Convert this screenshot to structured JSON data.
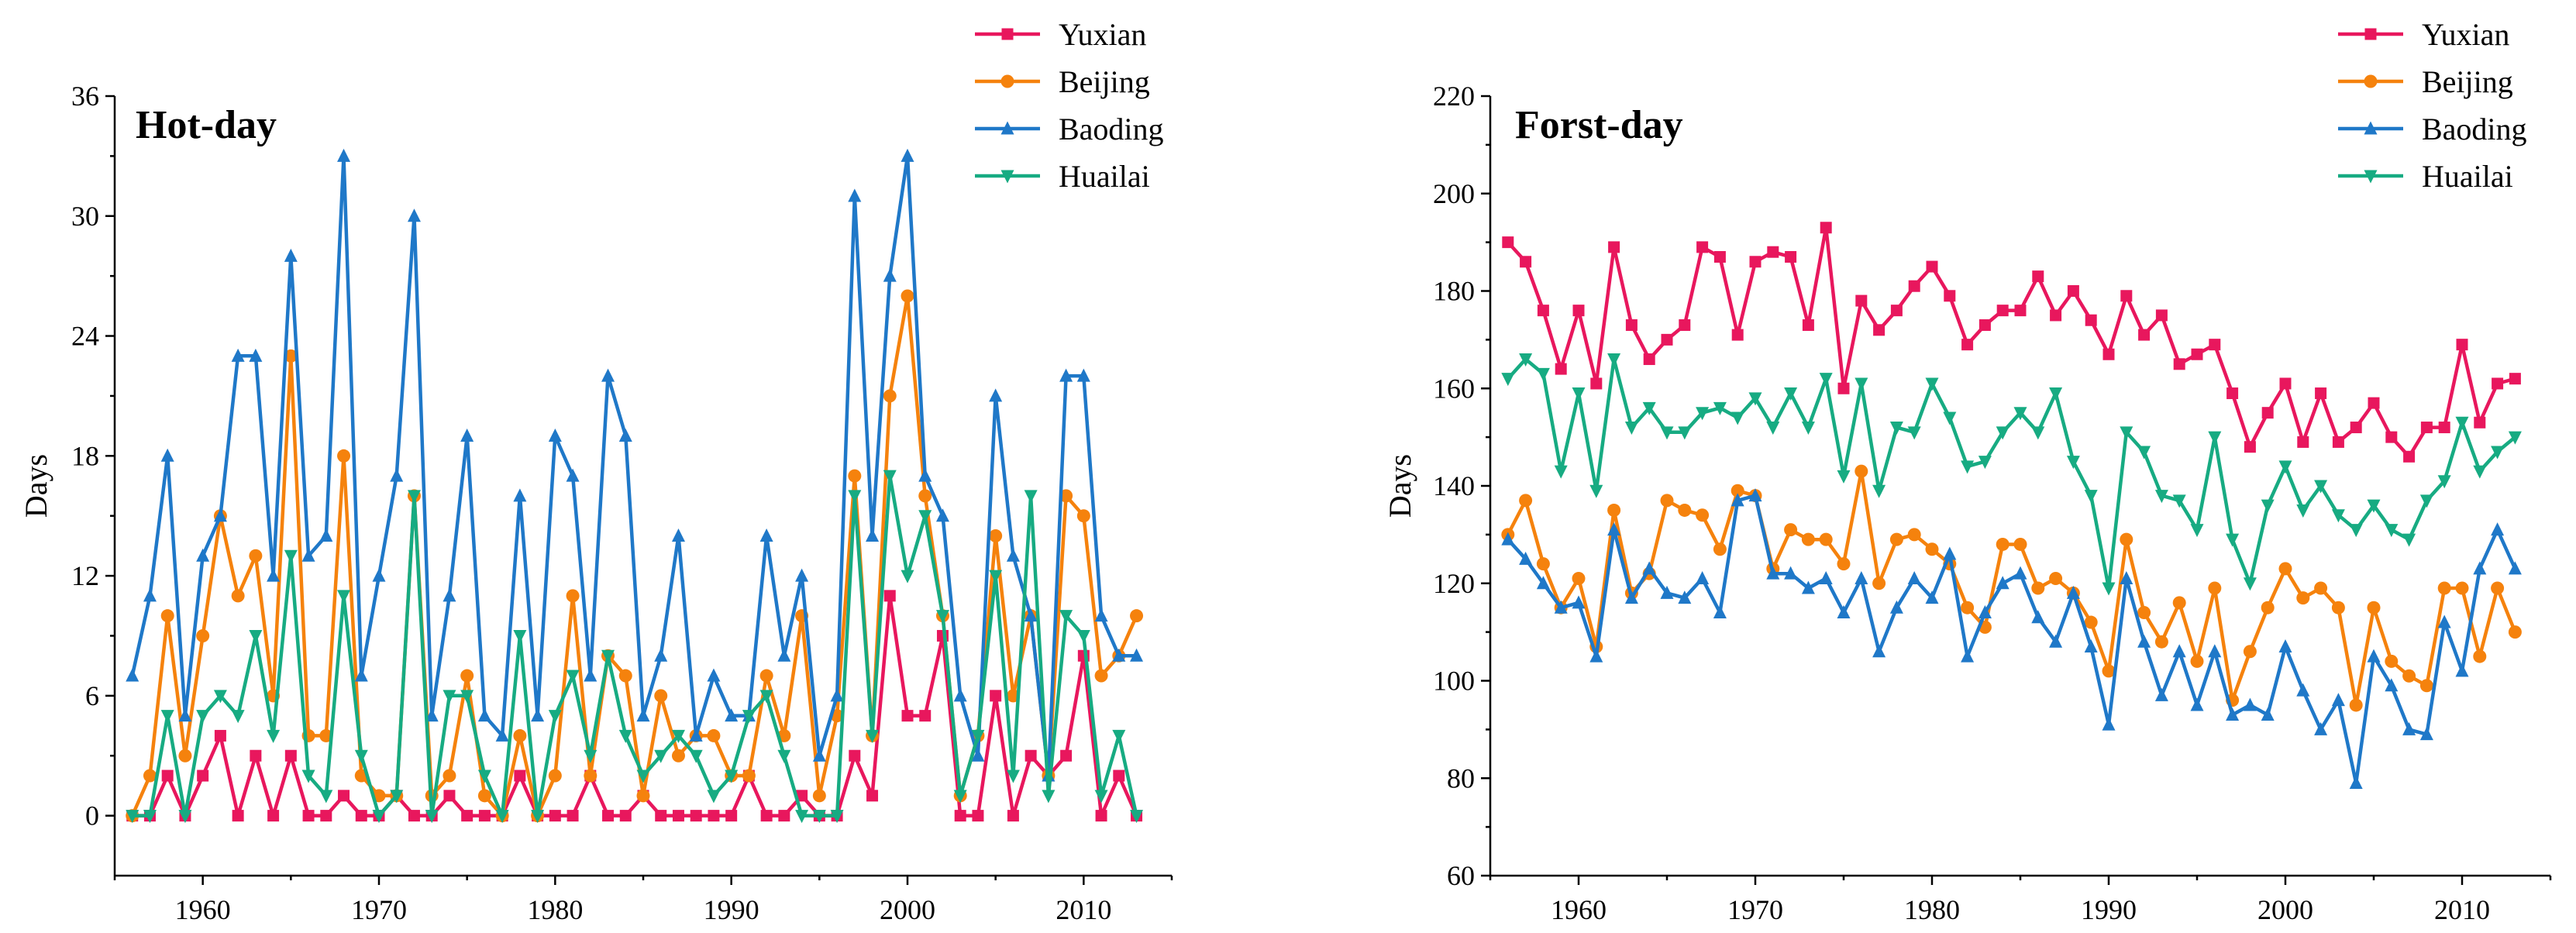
{
  "chart_data": [
    {
      "type": "line",
      "title": "Hot-day",
      "xlabel": "",
      "ylabel": "Days",
      "xlim": [
        1955,
        2015
      ],
      "ylim": [
        -3,
        36
      ],
      "xticks": [
        1960,
        1970,
        1980,
        1990,
        2000,
        2010
      ],
      "yticks": [
        0,
        6,
        12,
        18,
        24,
        30,
        36
      ],
      "legend_position": "top-right",
      "x": [
        1956,
        1957,
        1958,
        1959,
        1960,
        1961,
        1962,
        1963,
        1964,
        1965,
        1966,
        1967,
        1968,
        1969,
        1970,
        1971,
        1972,
        1973,
        1974,
        1975,
        1976,
        1977,
        1978,
        1979,
        1980,
        1981,
        1982,
        1983,
        1984,
        1985,
        1986,
        1987,
        1988,
        1989,
        1990,
        1991,
        1992,
        1993,
        1994,
        1995,
        1996,
        1997,
        1998,
        1999,
        2000,
        2001,
        2002,
        2003,
        2004,
        2005,
        2006,
        2007,
        2008,
        2009,
        2010,
        2011,
        2012,
        2013
      ],
      "series": [
        {
          "name": "Yuxian",
          "color": "#e8175d",
          "marker": "square",
          "values": [
            0,
            0,
            2,
            0,
            2,
            4,
            0,
            3,
            0,
            3,
            0,
            0,
            1,
            0,
            0,
            1,
            0,
            0,
            1,
            0,
            0,
            0,
            2,
            0,
            0,
            0,
            2,
            0,
            0,
            1,
            0,
            0,
            0,
            0,
            0,
            2,
            0,
            0,
            1,
            0,
            0,
            3,
            1,
            11,
            5,
            5,
            9,
            0,
            0,
            6,
            0,
            3,
            2,
            3,
            8,
            0,
            2,
            0
          ]
        },
        {
          "name": "Beijing",
          "color": "#f5820d",
          "marker": "circle",
          "values": [
            0,
            2,
            10,
            3,
            9,
            15,
            11,
            13,
            6,
            23,
            4,
            4,
            18,
            2,
            1,
            1,
            16,
            1,
            2,
            7,
            1,
            0,
            4,
            0,
            2,
            11,
            2,
            8,
            7,
            1,
            6,
            3,
            4,
            4,
            2,
            2,
            7,
            4,
            10,
            1,
            5,
            17,
            4,
            21,
            26,
            16,
            10,
            1,
            4,
            14,
            6,
            10,
            2,
            16,
            15,
            7,
            8,
            10
          ]
        },
        {
          "name": "Baoding",
          "color": "#1f78c8",
          "marker": "triangle-up",
          "values": [
            7,
            11,
            18,
            5,
            13,
            15,
            23,
            23,
            12,
            28,
            13,
            14,
            33,
            7,
            12,
            17,
            30,
            5,
            11,
            19,
            5,
            4,
            16,
            5,
            19,
            17,
            7,
            22,
            19,
            5,
            8,
            14,
            4,
            7,
            5,
            5,
            14,
            8,
            12,
            3,
            6,
            31,
            14,
            27,
            33,
            17,
            15,
            6,
            3,
            21,
            13,
            10,
            2,
            22,
            22,
            10,
            8,
            8
          ]
        },
        {
          "name": "Huailai",
          "color": "#17ab82",
          "marker": "triangle-down",
          "values": [
            0,
            0,
            5,
            0,
            5,
            6,
            5,
            9,
            4,
            13,
            2,
            1,
            11,
            3,
            0,
            1,
            16,
            0,
            6,
            6,
            2,
            0,
            9,
            0,
            5,
            7,
            3,
            8,
            4,
            2,
            3,
            4,
            3,
            1,
            2,
            5,
            6,
            3,
            0,
            0,
            0,
            16,
            4,
            17,
            12,
            15,
            10,
            1,
            4,
            12,
            2,
            16,
            1,
            10,
            9,
            1,
            4,
            0
          ]
        }
      ]
    },
    {
      "type": "line",
      "title": "Forst-day",
      "xlabel": "",
      "ylabel": "Days",
      "xlim": [
        1955,
        2015
      ],
      "ylim": [
        60,
        220
      ],
      "xticks": [
        1960,
        1970,
        1980,
        1990,
        2000,
        2010
      ],
      "yticks": [
        60,
        80,
        100,
        120,
        140,
        160,
        180,
        200,
        220
      ],
      "legend_position": "top-right",
      "x": [
        1956,
        1957,
        1958,
        1959,
        1960,
        1961,
        1962,
        1963,
        1964,
        1965,
        1966,
        1967,
        1968,
        1969,
        1970,
        1971,
        1972,
        1973,
        1974,
        1975,
        1976,
        1977,
        1978,
        1979,
        1980,
        1981,
        1982,
        1983,
        1984,
        1985,
        1986,
        1987,
        1988,
        1989,
        1990,
        1991,
        1992,
        1993,
        1994,
        1995,
        1996,
        1997,
        1998,
        1999,
        2000,
        2001,
        2002,
        2003,
        2004,
        2005,
        2006,
        2007,
        2008,
        2009,
        2010,
        2011,
        2012,
        2013
      ],
      "series": [
        {
          "name": "Yuxian",
          "color": "#e8175d",
          "marker": "square",
          "values": [
            190,
            186,
            176,
            164,
            176,
            161,
            189,
            173,
            166,
            170,
            173,
            189,
            187,
            171,
            186,
            188,
            187,
            173,
            193,
            160,
            178,
            172,
            176,
            181,
            185,
            179,
            169,
            173,
            176,
            176,
            183,
            175,
            180,
            174,
            167,
            179,
            171,
            175,
            165,
            167,
            169,
            159,
            148,
            155,
            161,
            149,
            159,
            149,
            152,
            157,
            150,
            146,
            152,
            152,
            169,
            153,
            161,
            162
          ]
        },
        {
          "name": "Beijing",
          "color": "#f5820d",
          "marker": "circle",
          "values": [
            130,
            137,
            124,
            115,
            121,
            107,
            135,
            118,
            122,
            137,
            135,
            134,
            127,
            139,
            138,
            123,
            131,
            129,
            129,
            124,
            143,
            120,
            129,
            130,
            127,
            124,
            115,
            111,
            128,
            128,
            119,
            121,
            118,
            112,
            102,
            129,
            114,
            108,
            116,
            104,
            119,
            96,
            106,
            115,
            123,
            117,
            119,
            115,
            95,
            115,
            104,
            101,
            99,
            119,
            119,
            105,
            119,
            110
          ]
        },
        {
          "name": "Baoding",
          "color": "#1f78c8",
          "marker": "triangle-up",
          "values": [
            129,
            125,
            120,
            115,
            116,
            105,
            131,
            117,
            123,
            118,
            117,
            121,
            114,
            137,
            138,
            122,
            122,
            119,
            121,
            114,
            121,
            106,
            115,
            121,
            117,
            126,
            105,
            114,
            120,
            122,
            113,
            108,
            118,
            107,
            91,
            121,
            108,
            97,
            106,
            95,
            106,
            93,
            95,
            93,
            107,
            98,
            90,
            96,
            79,
            105,
            99,
            90,
            89,
            112,
            102,
            123,
            131,
            123
          ]
        },
        {
          "name": "Huailai",
          "color": "#17ab82",
          "marker": "triangle-down",
          "values": [
            162,
            166,
            163,
            143,
            159,
            139,
            166,
            152,
            156,
            151,
            151,
            155,
            156,
            154,
            158,
            152,
            159,
            152,
            162,
            142,
            161,
            139,
            152,
            151,
            161,
            154,
            144,
            145,
            151,
            155,
            151,
            159,
            145,
            138,
            119,
            151,
            147,
            138,
            137,
            131,
            150,
            129,
            120,
            136,
            144,
            135,
            140,
            134,
            131,
            136,
            131,
            129,
            137,
            141,
            153,
            143,
            147,
            150
          ]
        }
      ]
    }
  ]
}
